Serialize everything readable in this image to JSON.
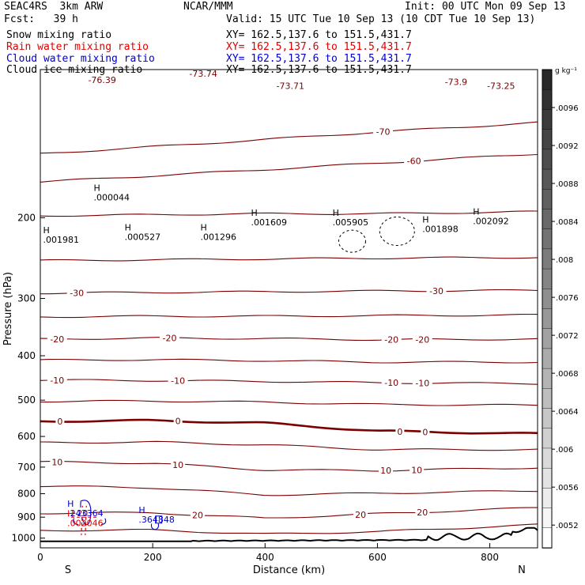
{
  "header": {
    "model": "SEAC4RS  3km ARW",
    "center": "NCAR/MMM",
    "init": "Init: 00 UTC Mon 09 Sep 13",
    "fcst": "Fcst:   39 h",
    "valid": "Valid: 15 UTC Tue 10 Sep 13 (10 CDT Tue 10 Sep 13)"
  },
  "fields": [
    {
      "name": "Snow mixing ratio",
      "xy": "XY= 162.5,137.6 to 151.5,431.7",
      "color": "#000000"
    },
    {
      "name": "Rain water mixing ratio",
      "xy": "XY= 162.5,137.6 to 151.5,431.7",
      "color": "#e00000"
    },
    {
      "name": "Cloud water mixing ratio",
      "xy": "XY= 162.5,137.6 to 151.5,431.7",
      "color": "#0000d0"
    },
    {
      "name": "Cloud ice mixing ratio",
      "xy": "XY= 162.5,137.6 to 151.5,431.7",
      "color": "#000000"
    }
  ],
  "chart_data": {
    "type": "contour",
    "xlabel": "Distance (km)",
    "ylabel": "Pressure (hPa)",
    "xlim": [
      0,
      885
    ],
    "ylim": [
      1050,
      95
    ],
    "y_log": true,
    "xticks": [
      0,
      200,
      400,
      600,
      800
    ],
    "yticks": [
      200,
      300,
      400,
      500,
      600,
      700,
      800,
      900,
      1000
    ],
    "end_labels": {
      "left": "S",
      "right": "N"
    },
    "colorbar": {
      "unit": "g kg⁻¹",
      "labels": [
        ".0096",
        ".0092",
        ".0088",
        ".0084",
        ".008",
        ".0076",
        ".0072",
        ".0068",
        ".0064",
        ".006",
        ".0056",
        ".0052"
      ]
    },
    "temperature_color": "#7a0000",
    "temperature_contours": [
      {
        "level": -70,
        "p": [
          [
            0,
            145
          ],
          [
            200,
            140
          ],
          [
            400,
            135
          ],
          [
            600,
            130
          ],
          [
            885,
            124
          ]
        ],
        "labels": [
          {
            "x": 610,
            "text": "-70"
          }
        ]
      },
      {
        "level": -60,
        "p": [
          [
            0,
            167
          ],
          [
            200,
            162
          ],
          [
            400,
            157
          ],
          [
            600,
            152
          ],
          [
            885,
            145
          ]
        ],
        "labels": [
          {
            "x": 665,
            "text": "-60"
          }
        ]
      },
      {
        "level": -50,
        "p": [
          [
            0,
            198
          ],
          [
            200,
            197
          ],
          [
            400,
            196
          ],
          [
            600,
            196
          ],
          [
            885,
            194
          ]
        ],
        "labels": []
      },
      {
        "level": -40,
        "p": [
          [
            0,
            248
          ],
          [
            200,
            247
          ],
          [
            400,
            246
          ],
          [
            600,
            245
          ],
          [
            885,
            244
          ]
        ],
        "labels": []
      },
      {
        "level": -30,
        "p": [
          [
            0,
            292
          ],
          [
            200,
            291
          ],
          [
            400,
            290
          ],
          [
            600,
            289
          ],
          [
            885,
            288
          ]
        ],
        "labels": [
          {
            "x": 65,
            "text": "-30"
          },
          {
            "x": 705,
            "text": "-30"
          }
        ]
      },
      {
        "level": -25,
        "p": [
          [
            0,
            329
          ],
          [
            200,
            328
          ],
          [
            400,
            328
          ],
          [
            600,
            327
          ],
          [
            885,
            326
          ]
        ],
        "labels": []
      },
      {
        "level": -20,
        "p": [
          [
            0,
            368
          ],
          [
            200,
            366
          ],
          [
            400,
            367
          ],
          [
            600,
            369
          ],
          [
            885,
            368
          ]
        ],
        "labels": [
          {
            "x": 30,
            "text": "-20"
          },
          {
            "x": 230,
            "text": "-20"
          },
          {
            "x": 625,
            "text": "-20"
          },
          {
            "x": 680,
            "text": "-20"
          }
        ]
      },
      {
        "level": -15,
        "p": [
          [
            0,
            409
          ],
          [
            200,
            408
          ],
          [
            400,
            410
          ],
          [
            600,
            413
          ],
          [
            885,
            413
          ]
        ],
        "labels": []
      },
      {
        "level": -10,
        "p": [
          [
            0,
            452
          ],
          [
            200,
            453
          ],
          [
            400,
            455
          ],
          [
            600,
            458
          ],
          [
            885,
            460
          ]
        ],
        "labels": [
          {
            "x": 30,
            "text": "-10"
          },
          {
            "x": 245,
            "text": "-10"
          },
          {
            "x": 625,
            "text": "-10"
          },
          {
            "x": 680,
            "text": "-10"
          }
        ]
      },
      {
        "level": -5,
        "p": [
          [
            0,
            503
          ],
          [
            200,
            502
          ],
          [
            400,
            505
          ],
          [
            600,
            511
          ],
          [
            885,
            513
          ]
        ],
        "labels": []
      },
      {
        "level": 0,
        "p": [
          [
            0,
            556
          ],
          [
            200,
            554
          ],
          [
            400,
            561
          ],
          [
            600,
            584
          ],
          [
            885,
            592
          ]
        ],
        "labels": [
          {
            "x": 35,
            "text": "0"
          },
          {
            "x": 245,
            "text": "0"
          },
          {
            "x": 640,
            "text": "0"
          },
          {
            "x": 685,
            "text": "0"
          }
        ],
        "bold": true
      },
      {
        "level": 5,
        "p": [
          [
            0,
            619
          ],
          [
            200,
            617
          ],
          [
            400,
            626
          ],
          [
            600,
            641
          ],
          [
            885,
            641
          ]
        ],
        "labels": []
      },
      {
        "level": 10,
        "p": [
          [
            0,
            682
          ],
          [
            200,
            686
          ],
          [
            400,
            710
          ],
          [
            600,
            712
          ],
          [
            885,
            702
          ]
        ],
        "labels": [
          {
            "x": 30,
            "text": "10"
          },
          {
            "x": 245,
            "text": "10"
          },
          {
            "x": 615,
            "text": "10"
          },
          {
            "x": 670,
            "text": "10"
          }
        ]
      },
      {
        "level": 15,
        "p": [
          [
            0,
            770
          ],
          [
            200,
            776
          ],
          [
            400,
            805
          ],
          [
            600,
            798
          ],
          [
            885,
            788
          ]
        ],
        "labels": []
      },
      {
        "level": 20,
        "p": [
          [
            0,
            882
          ],
          [
            200,
            880
          ],
          [
            400,
            905
          ],
          [
            600,
            885
          ],
          [
            885,
            858
          ]
        ],
        "labels": [
          {
            "x": 75,
            "text": "20"
          },
          {
            "x": 280,
            "text": "20"
          },
          {
            "x": 570,
            "text": "20"
          },
          {
            "x": 680,
            "text": "20"
          }
        ]
      },
      {
        "level": 25,
        "p": [
          [
            0,
            962
          ],
          [
            200,
            960
          ],
          [
            400,
            980
          ],
          [
            600,
            968
          ],
          [
            885,
            935
          ]
        ],
        "labels": []
      }
    ],
    "top_labels": [
      {
        "x": 110,
        "p": 100,
        "text": "-76.39"
      },
      {
        "x": 290,
        "p": 97,
        "text": "-73.74"
      },
      {
        "x": 445,
        "p": 103,
        "text": "-73.71"
      },
      {
        "x": 740,
        "p": 101,
        "text": "-73.9"
      },
      {
        "x": 820,
        "p": 103,
        "text": "-73.25"
      }
    ],
    "max_labels": [
      {
        "x": 95,
        "p": 182,
        "h": "H",
        "v": ".000044",
        "color": "#000000"
      },
      {
        "x": 5,
        "p": 225,
        "h": "H",
        "v": ".001981",
        "color": "#000000"
      },
      {
        "x": 150,
        "p": 222,
        "h": "H",
        "v": ".000527",
        "color": "#000000"
      },
      {
        "x": 285,
        "p": 222,
        "h": "H",
        "v": ".001296",
        "color": "#000000"
      },
      {
        "x": 375,
        "p": 206,
        "h": "H",
        "v": ".001609",
        "color": "#000000"
      },
      {
        "x": 520,
        "p": 206,
        "h": "H",
        "v": ".005905",
        "color": "#000000"
      },
      {
        "x": 680,
        "p": 213,
        "h": "H",
        "v": ".001898",
        "color": "#000000"
      },
      {
        "x": 770,
        "p": 205,
        "h": "H",
        "v": ".002092",
        "color": "#000000"
      },
      {
        "x": 48,
        "p": 888,
        "h": "H",
        "v": ".243364",
        "color": "#0000d0"
      },
      {
        "x": 48,
        "p": 933,
        "h": "H",
        "v": ".002046",
        "color": "#e00000"
      },
      {
        "x": 175,
        "p": 918,
        "h": "H",
        "v": ".364848",
        "color": "#0000d0"
      }
    ],
    "terrain": {
      "color": "#000000",
      "baseline": 1050
    }
  }
}
